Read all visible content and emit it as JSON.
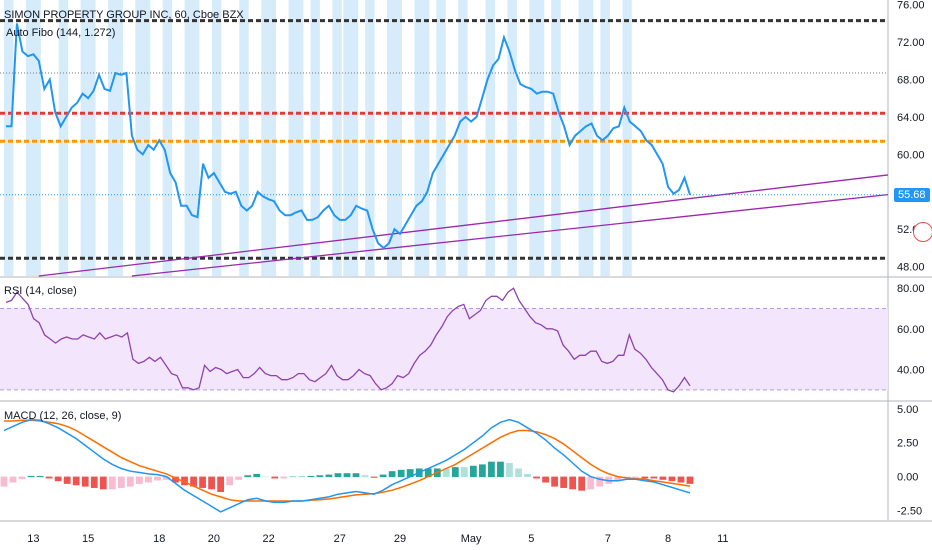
{
  "header": {
    "symbol_title": "SIMON PROPERTY GROUP INC, 60, Cboe BZX",
    "indicator_title": "Auto Fibo (144, 1.272)"
  },
  "rsi_panel": {
    "title": "RSI (14, close)"
  },
  "macd_panel": {
    "title": "MACD (12, 26, close, 9)"
  },
  "colors": {
    "price_line": "#2196f3",
    "rsi_line": "#8e44ad",
    "rsi_band": "#f3e5fb",
    "macd_line": "#2196f3",
    "signal_line": "#ff6d00",
    "hist_pos": "#26a69a",
    "hist_neg": "#ef5350",
    "session_shade": "#d6ecfb",
    "trend_line": "#9c27b0",
    "fib_black": "#333333",
    "fib_red": "#e53935",
    "fib_orange": "#ff9800",
    "fib_gray": "#777777"
  },
  "last_price": "55.68",
  "chart_data": [
    {
      "type": "line",
      "panel": "price",
      "ylim": [
        47,
        76.5
      ],
      "yticks": [
        "76.00",
        "72.00",
        "68.00",
        "64.00",
        "60.00",
        "56.00",
        "52.00",
        "48.00"
      ],
      "ytick_values": [
        76,
        72,
        68,
        64,
        60,
        56,
        52,
        48
      ],
      "xlim": [
        0,
        117
      ],
      "xticks": [
        "13",
        "15",
        "18",
        "20",
        "22",
        "27",
        "29",
        "May",
        "5",
        "7",
        "8",
        "11"
      ],
      "xtick_values": [
        5,
        15,
        28,
        38,
        48,
        61,
        72,
        85,
        96,
        110,
        121,
        131
      ],
      "last_value": 55.68,
      "series": [
        {
          "values": [
            63,
            63,
            74,
            71,
            70.5,
            70.7,
            70,
            67,
            68,
            64.5,
            63,
            64,
            65,
            65.5,
            66.5,
            66,
            66.8,
            68.5,
            67,
            66.8,
            68.7,
            68.5,
            68.7,
            62,
            60.5,
            60,
            61,
            60.5,
            61.5,
            60.5,
            58,
            57,
            54.5,
            54.5,
            53.5,
            53.3,
            59,
            57.5,
            58,
            57,
            56,
            55.8,
            56,
            54.5,
            54,
            54.5,
            56,
            55.5,
            55.2,
            55,
            54,
            53.5,
            53.5,
            53.8,
            54,
            53,
            53,
            53.3,
            54,
            54.5,
            53.5,
            53,
            53,
            53.5,
            54.5,
            54.2,
            54,
            52,
            50.5,
            50,
            50.5,
            52,
            51.5,
            52.5,
            53.5,
            54.5,
            55,
            56,
            58,
            59,
            60,
            61,
            62,
            63.5,
            64,
            63.5,
            64,
            66,
            68,
            69.5,
            70.2,
            72.5,
            71,
            69,
            67.5,
            67.2,
            67,
            66.5,
            66.7,
            66.7,
            66.5,
            64.5,
            63,
            61,
            62,
            62.5,
            63,
            63.3,
            62,
            61.5,
            62,
            62.8,
            63,
            65,
            63.5,
            63,
            62.5,
            61.5,
            61,
            60,
            59,
            56.5,
            55.8,
            56.2,
            57.5,
            55.68
          ]
        }
      ],
      "fib_levels": [
        {
          "value": 74.3,
          "style": "black"
        },
        {
          "value": 68.7,
          "style": "gray"
        },
        {
          "value": 64.4,
          "style": "red"
        },
        {
          "value": 61.4,
          "style": "orange"
        },
        {
          "value": 48.9,
          "style": "black"
        }
      ],
      "trend_lines": [
        {
          "x": [
            6,
            117
          ],
          "y": [
            47,
            57.8
          ]
        },
        {
          "x": [
            23,
            117
          ],
          "y": [
            47,
            55.7
          ]
        }
      ],
      "session_bands": [
        [
          0,
          1
        ],
        [
          4,
          6
        ],
        [
          10,
          11
        ],
        [
          14,
          16
        ],
        [
          19,
          21
        ],
        [
          24,
          26
        ],
        [
          29,
          30
        ],
        [
          33,
          35
        ],
        [
          38,
          39
        ],
        [
          43,
          44
        ],
        [
          47,
          49
        ],
        [
          52,
          54
        ],
        [
          56,
          57
        ],
        [
          60,
          61
        ],
        [
          62,
          64
        ],
        [
          66,
          67
        ],
        [
          70,
          72
        ],
        [
          75,
          77
        ],
        [
          79,
          80
        ],
        [
          83,
          84
        ],
        [
          88,
          89
        ],
        [
          92,
          93
        ],
        [
          96,
          98
        ],
        [
          100,
          101
        ],
        [
          105,
          107
        ],
        [
          109,
          110
        ],
        [
          113,
          114
        ]
      ]
    },
    {
      "type": "line",
      "panel": "rsi",
      "ylim": [
        25,
        85
      ],
      "yticks": [
        "80.00",
        "60.00",
        "40.00"
      ],
      "ytick_values": [
        80,
        60,
        40
      ],
      "band": [
        30,
        70
      ],
      "series": [
        {
          "values": [
            73,
            74,
            78,
            75,
            72,
            65,
            63,
            57,
            55,
            53,
            55,
            56,
            55,
            55,
            57,
            56,
            55,
            58,
            55,
            56,
            57,
            56,
            58,
            45,
            43,
            44,
            46,
            44,
            46,
            42,
            38,
            37,
            31,
            31,
            30,
            31,
            42,
            39,
            41,
            40,
            38,
            39,
            40,
            36,
            36,
            38,
            41,
            38,
            37,
            37,
            35,
            35,
            36,
            38,
            38,
            35,
            34,
            36,
            38,
            42,
            37,
            35,
            35,
            37,
            40,
            38,
            37,
            33,
            30,
            31,
            33,
            37,
            36,
            38,
            43,
            47,
            49,
            52,
            57,
            61,
            66,
            69,
            71,
            72,
            65,
            67,
            69,
            74,
            76,
            76,
            74,
            78,
            80,
            74,
            70,
            66,
            63,
            62,
            60,
            60,
            59,
            52,
            49,
            45,
            47,
            47,
            49,
            49,
            44,
            43,
            44,
            47,
            47,
            57,
            50,
            48,
            45,
            41,
            38,
            35,
            30,
            29,
            32,
            36,
            32
          ]
        }
      ]
    },
    {
      "type": "line",
      "panel": "macd",
      "ylim": [
        -3.2,
        5.5
      ],
      "yticks": [
        "5.00",
        "2.50",
        "0.00",
        "-2.50"
      ],
      "ytick_values": [
        5,
        2.5,
        0,
        -2.5
      ],
      "series": [
        {
          "name": "MACD",
          "values": [
            3.4,
            3.7,
            4.0,
            4.2,
            4.15,
            3.9,
            3.6,
            3.2,
            2.8,
            2.3,
            1.8,
            1.3,
            0.9,
            0.6,
            0.4,
            0.3,
            0.2,
            0.15,
            0.0,
            -0.5,
            -1.0,
            -1.4,
            -1.8,
            -2.2,
            -2.6,
            -2.3,
            -2.0,
            -1.7,
            -1.6,
            -1.8,
            -1.9,
            -1.9,
            -1.8,
            -1.8,
            -1.7,
            -1.6,
            -1.5,
            -1.3,
            -1.2,
            -1.1,
            -1.2,
            -1.3,
            -1.0,
            -0.6,
            -0.3,
            0.0,
            0.3,
            0.6,
            0.9,
            1.2,
            1.6,
            2.0,
            2.5,
            3.0,
            3.6,
            4.0,
            4.2,
            4.0,
            3.6,
            3.2,
            2.7,
            2.1,
            1.6,
            1.0,
            0.4,
            0.0,
            -0.2,
            -0.3,
            -0.3,
            -0.2,
            -0.2,
            -0.3,
            -0.4,
            -0.6,
            -0.8,
            -1.0,
            -1.2
          ]
        },
        {
          "name": "Signal",
          "values": [
            4.1,
            4.1,
            4.15,
            4.15,
            4.1,
            4.0,
            3.9,
            3.7,
            3.4,
            3.0,
            2.6,
            2.2,
            1.8,
            1.4,
            1.1,
            0.8,
            0.6,
            0.4,
            0.2,
            -0.1,
            -0.4,
            -0.7,
            -1.0,
            -1.3,
            -1.5,
            -1.7,
            -1.8,
            -1.8,
            -1.8,
            -1.8,
            -1.8,
            -1.8,
            -1.8,
            -1.8,
            -1.75,
            -1.7,
            -1.65,
            -1.55,
            -1.45,
            -1.35,
            -1.3,
            -1.25,
            -1.15,
            -1.0,
            -0.8,
            -0.55,
            -0.3,
            0.0,
            0.3,
            0.6,
            0.9,
            1.3,
            1.7,
            2.1,
            2.5,
            2.9,
            3.2,
            3.4,
            3.4,
            3.3,
            3.1,
            2.8,
            2.4,
            1.9,
            1.4,
            0.9,
            0.5,
            0.2,
            0.0,
            -0.1,
            -0.15,
            -0.2,
            -0.3,
            -0.4,
            -0.5,
            -0.6,
            -0.7
          ]
        }
      ]
    }
  ]
}
